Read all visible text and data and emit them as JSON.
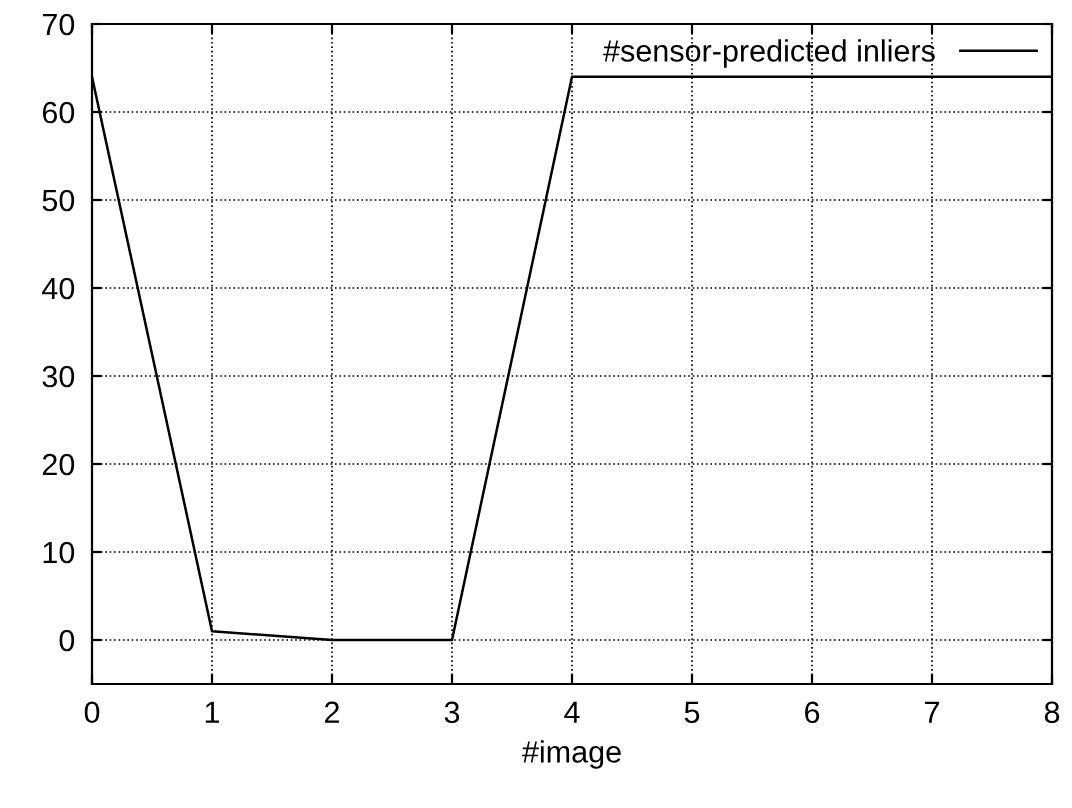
{
  "chart_data": {
    "type": "line",
    "xlabel": "#image",
    "x": [
      0,
      1,
      2,
      3,
      4,
      5,
      6,
      7,
      8
    ],
    "series": [
      {
        "name": "#sensor-predicted inliers",
        "color": "#000000",
        "values": [
          64,
          1,
          0,
          0,
          64,
          64,
          64,
          64,
          64
        ]
      }
    ],
    "xlim": [
      0,
      8
    ],
    "xticks": [
      0,
      1,
      2,
      3,
      4,
      5,
      6,
      7,
      8
    ],
    "ylim": [
      -5,
      70
    ],
    "yticks": [
      0,
      10,
      20,
      30,
      40,
      50,
      60,
      70
    ],
    "grid": true,
    "legend": "top right",
    "marker": "none",
    "line_style": "solid"
  }
}
